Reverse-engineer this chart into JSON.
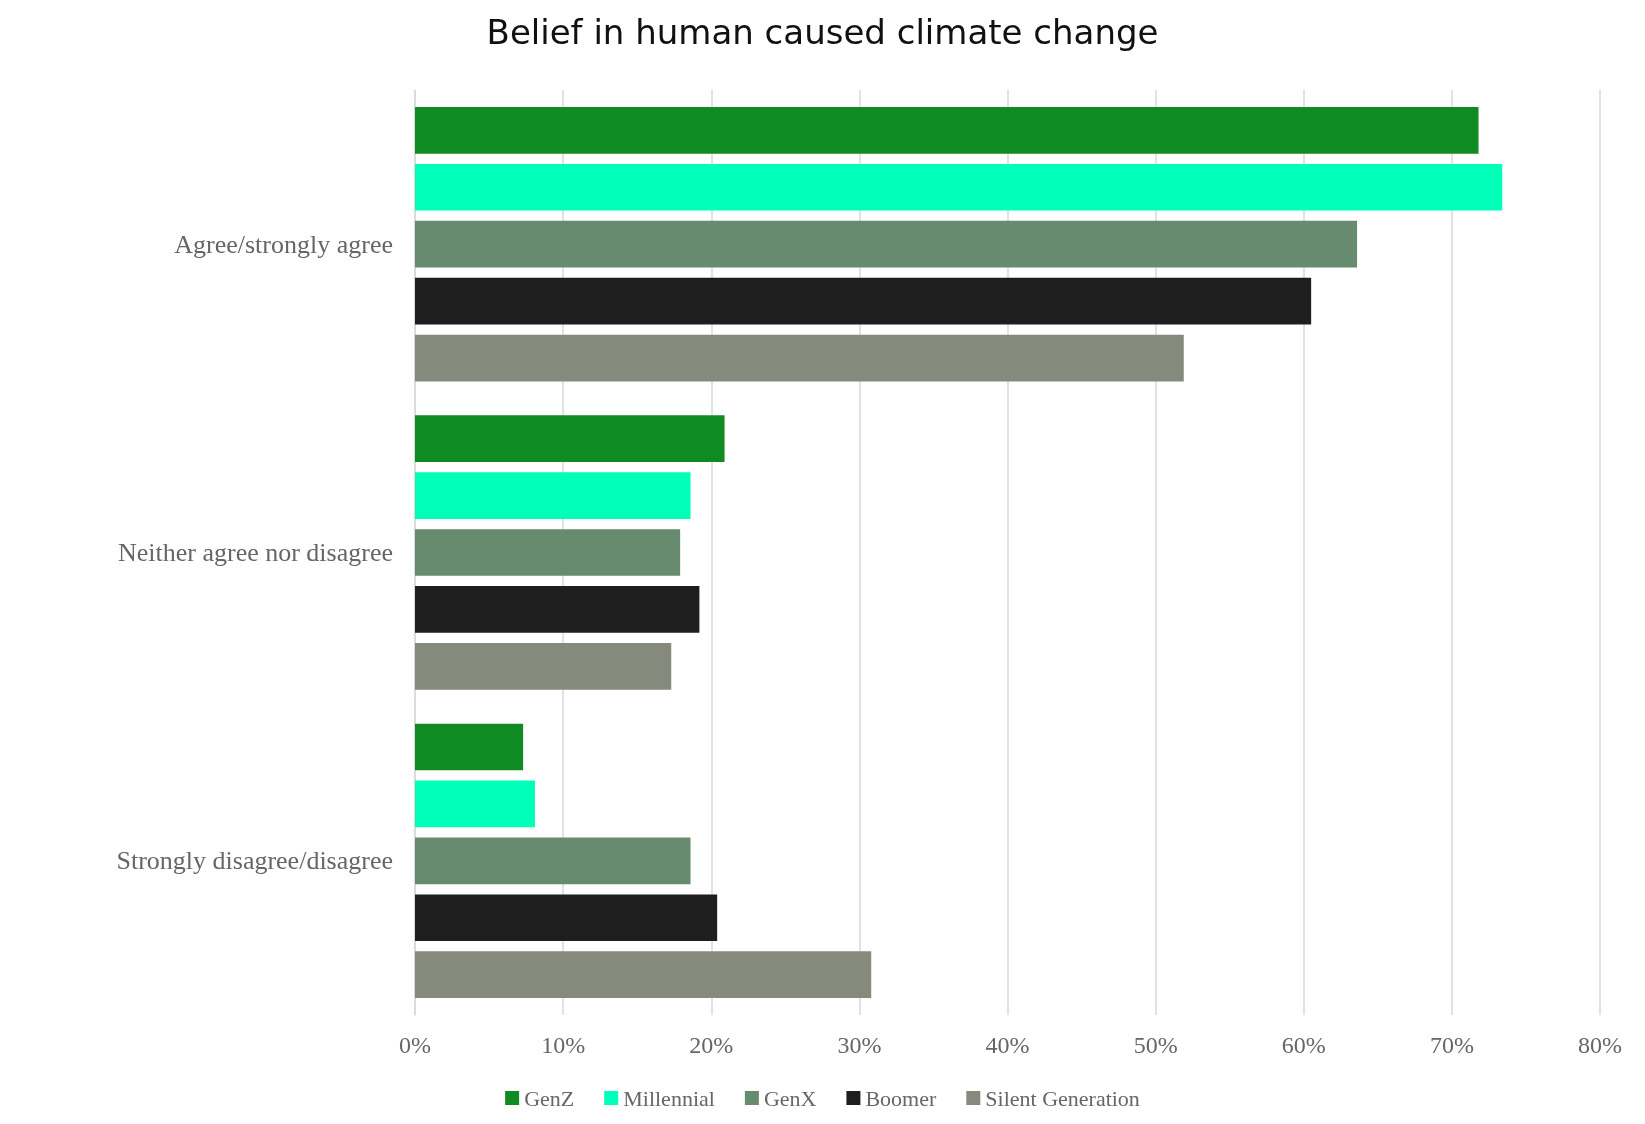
{
  "chart_data": {
    "type": "bar",
    "orientation": "horizontal",
    "title": "Belief in human caused climate change",
    "categories": [
      "Agree/strongly agree",
      "Neither agree nor disagree",
      "Strongly disagree/disagree"
    ],
    "series": [
      {
        "name": "GenZ",
        "color": "#108a22",
        "values": [
          71.8,
          20.9,
          7.3
        ]
      },
      {
        "name": "Millennial",
        "color": "#00ffb8",
        "values": [
          73.4,
          18.6,
          8.1
        ]
      },
      {
        "name": "GenX",
        "color": "#668b6f",
        "values": [
          63.6,
          17.9,
          18.6
        ]
      },
      {
        "name": "Boomer",
        "color": "#1e1e1e",
        "values": [
          60.5,
          19.2,
          20.4
        ]
      },
      {
        "name": "Silent Generation",
        "color": "#858a7d",
        "values": [
          51.9,
          17.3,
          30.8
        ]
      }
    ],
    "xlim": [
      0,
      80
    ],
    "xticks": [
      {
        "value": 0,
        "label": "0%"
      },
      {
        "value": 10,
        "label": "10%"
      },
      {
        "value": 20,
        "label": "20%"
      },
      {
        "value": 30,
        "label": "30%"
      },
      {
        "value": 40,
        "label": "40%"
      },
      {
        "value": 50,
        "label": "50%"
      },
      {
        "value": 60,
        "label": "60%"
      },
      {
        "value": 70,
        "label": "70%"
      },
      {
        "value": 80,
        "label": "80%"
      }
    ],
    "grid": "x",
    "legend": "bottom"
  }
}
